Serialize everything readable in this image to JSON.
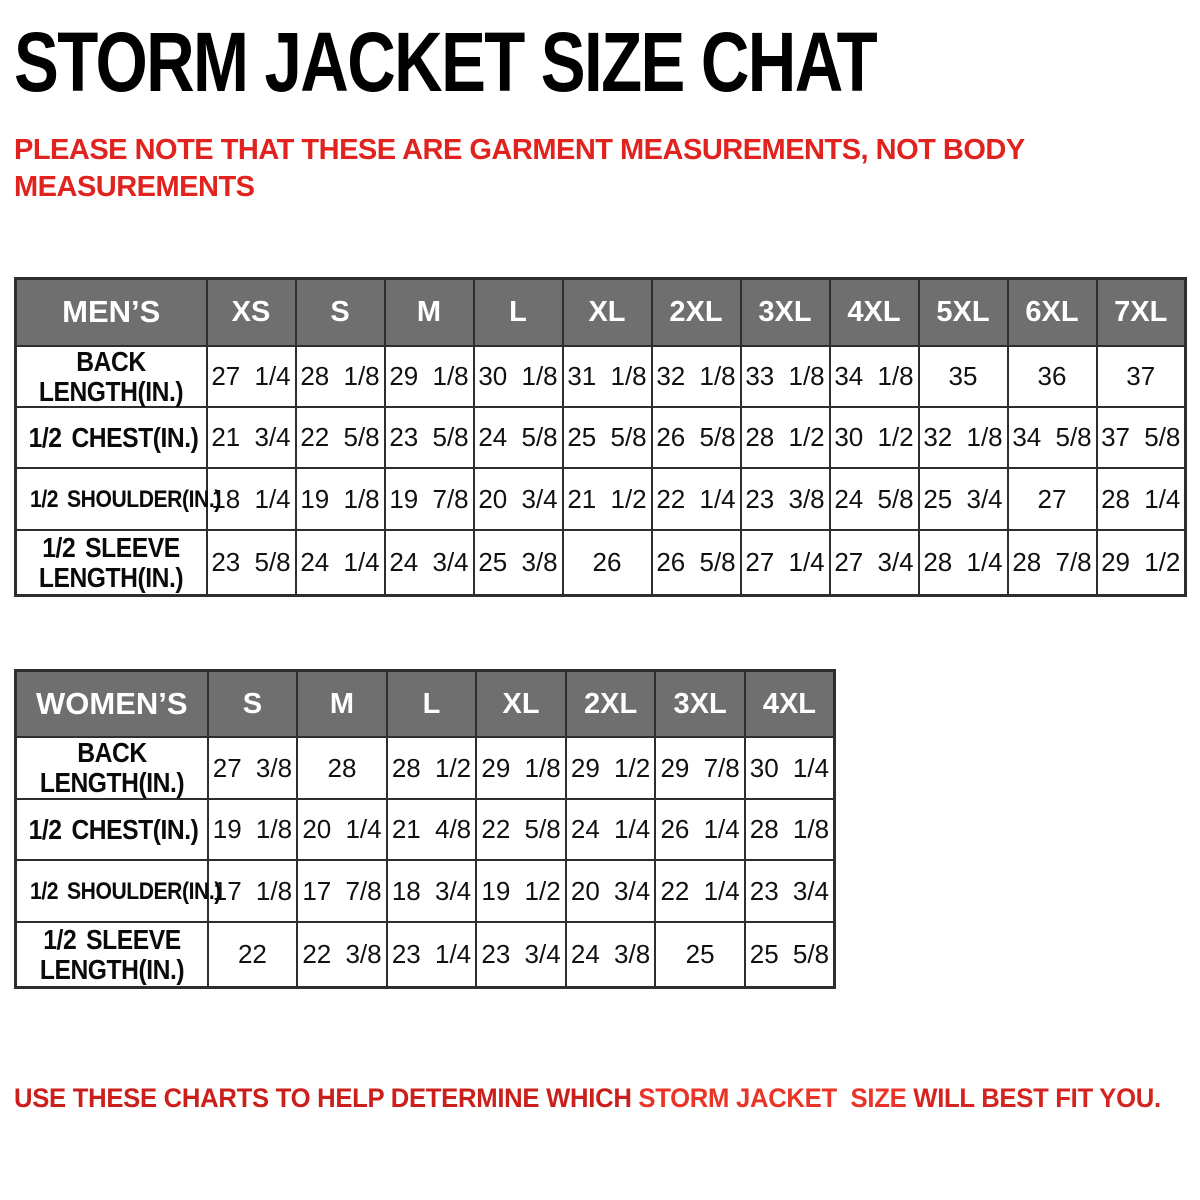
{
  "page": {
    "title": "STORM JACKET SIZE CHAT",
    "note": "PLEASE NOTE THAT THESE ARE GARMENT MEASUREMENTS, NOT BODY\nMEASUREMENTS"
  },
  "colors": {
    "header_gray": "#6f6f6f",
    "border_col": "#2e2e2e",
    "note_red": "#e1231f",
    "text_black": "#0a0a0a",
    "bg": "#ffffff"
  },
  "tables": [
    {
      "group_label": "MEN’S",
      "group_name": "mens",
      "sizes": [
        "XS",
        "S",
        "M",
        "L",
        "XL",
        "2XL",
        "3XL",
        "4XL",
        "5XL",
        "6XL",
        "7XL"
      ],
      "rows": [
        {
          "label": "BACK\nLENGTH(IN.)",
          "values": [
            "27 1/4",
            "28 1/8",
            "29 1/8",
            "30 1/8",
            "31 1/8",
            "32 1/8",
            "33 1/8",
            "34 1/8",
            "35",
            "36",
            "37"
          ]
        },
        {
          "label": "1/2 CHEST(IN.)",
          "values": [
            "21 3/4",
            "22 5/8",
            "23 5/8",
            "24 5/8",
            "25 5/8",
            "26 5/8",
            "28 1/2",
            "30 1/2",
            "32 1/8",
            "34 5/8",
            "37 5/8"
          ]
        },
        {
          "label": "1/2 SHOULDER(IN.)",
          "values": [
            "18 1/4",
            "19 1/8",
            "19 7/8",
            "20 3/4",
            "21 1/2",
            "22 1/4",
            "23 3/8",
            "24 5/8",
            "25 3/4",
            "27",
            "28 1/4"
          ]
        },
        {
          "label": "1/2 SLEEVE\nLENGTH(IN.)",
          "values": [
            "23 5/8",
            "24 1/4",
            "24 3/4",
            "25 3/8",
            "26",
            "26 5/8",
            "27 1/4",
            "27 3/4",
            "28 1/4",
            "28 7/8",
            "29 1/2"
          ]
        }
      ]
    },
    {
      "group_label": "WOMEN’S",
      "group_name": "womens",
      "sizes": [
        "S",
        "M",
        "L",
        "XL",
        "2XL",
        "3XL",
        "4XL"
      ],
      "rows": [
        {
          "label": "BACK\nLENGTH(IN.)",
          "values": [
            "27 3/8",
            "28",
            "28 1/2",
            "29 1/8",
            "29 1/2",
            "29 7/8",
            "30 1/4"
          ]
        },
        {
          "label": "1/2 CHEST(IN.)",
          "values": [
            "19 1/8",
            "20 1/4",
            "21 4/8",
            "22 5/8",
            "24 1/4",
            "26 1/4",
            "28 1/8"
          ]
        },
        {
          "label": "1/2 SHOULDER(IN.)",
          "values": [
            "17 1/8",
            "17 7/8",
            "18 3/4",
            "19 1/2",
            "20 3/4",
            "22 1/4",
            "23 3/4"
          ]
        },
        {
          "label": "1/2 SLEEVE\nLENGTH(IN.)",
          "values": [
            "22",
            "22 3/8",
            "23 1/4",
            "23 3/4",
            "24 3/8",
            "25",
            "25 5/8"
          ]
        }
      ]
    }
  ],
  "footer": {
    "segments": [
      {
        "text": "USE THESE CHARTS TO HELP DETERMINE WHICH ",
        "color": "#cb1f1c"
      },
      {
        "text": "STORM JACKET  SIZE",
        "color": "#ea3427"
      },
      {
        "text": " WILL BEST FIT YOU.",
        "color": "#d42420"
      }
    ]
  }
}
